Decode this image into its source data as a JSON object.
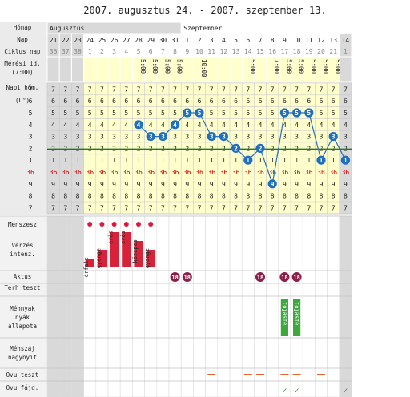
{
  "header": {
    "title": "2007. augusztus 24. - 2007. szeptember 13."
  },
  "labels": {
    "month": "Hónap",
    "day": "Nap",
    "cycle_day": "Ciklus nap",
    "measure_time_1": "Mérési id.",
    "measure_time_2": "(7:00)",
    "temp_1": "Napi hőm.",
    "temp_2": "(C°)",
    "menses": "Menszesz",
    "bleeding_1": "Vérzés",
    "bleeding_2": "intenz.",
    "intercourse": "Aktus",
    "pregnancy_test": "Terh teszt",
    "cervix_1": "Méhnyak",
    "cervix_2": "nyák",
    "cervix_3": "állapota",
    "cervix_os_1": "Méhszáj",
    "cervix_os_2": "nagynyit",
    "ov_test": "Ovu teszt",
    "ov_pain": "Ovu fájd."
  },
  "months": [
    "Augusztus",
    "Szeptember"
  ],
  "days": [
    "21",
    "22",
    "23",
    "24",
    "25",
    "26",
    "27",
    "28",
    "29",
    "30",
    "31",
    "1",
    "2",
    "3",
    "4",
    "5",
    "6",
    "7",
    "8",
    "9",
    "10",
    "11",
    "12",
    "13",
    "14"
  ],
  "cycle_days": [
    "36",
    "37",
    "38",
    "1",
    "2",
    "3",
    "4",
    "5",
    "6",
    "7",
    "8",
    "9",
    "10",
    "11",
    "12",
    "13",
    "14",
    "15",
    "16",
    "17",
    "18",
    "19",
    "20",
    "21",
    "1"
  ],
  "measure_times": [
    "",
    "",
    "",
    "",
    "",
    "",
    "",
    "5:00",
    "5:00",
    "5:00",
    "5:00",
    "",
    "10:00",
    "",
    "",
    "",
    "5:00",
    "",
    "7:00",
    "5:00",
    "5:00",
    "5:00",
    "5:00",
    "5:00",
    ""
  ],
  "temp_scale_labels": [
    "7",
    "6",
    "5",
    "4",
    "3",
    "2",
    "1",
    "36",
    "9",
    "8",
    "7"
  ],
  "bleeding_words": [
    "",
    "",
    "",
    "érfolt",
    "gyenge",
    "erős",
    "erős",
    "közepes",
    "gyenge",
    "",
    "",
    "",
    "",
    "",
    "",
    "",
    "",
    "",
    "",
    "",
    "",
    "",
    "",
    "",
    ""
  ],
  "intercourse_marker": "18",
  "cervix_words": [
    "",
    "",
    "",
    "",
    "",
    "",
    "",
    "",
    "",
    "",
    "",
    "",
    "",
    "",
    "",
    "",
    "",
    "",
    "",
    "tojásfe",
    "tojásfe",
    "",
    "",
    "",
    ""
  ],
  "ov_pain_mark": "✓",
  "chart_data": {
    "type": "line",
    "title": "2007. augusztus 24. - 2007. szeptember 13.",
    "xlabel": "Nap",
    "ylabel": "Napi hőm. (C°)",
    "x": [
      "21",
      "22",
      "23",
      "24",
      "25",
      "26",
      "27",
      "28",
      "29",
      "30",
      "31",
      "1",
      "2",
      "3",
      "4",
      "5",
      "6",
      "7",
      "8",
      "9",
      "10",
      "11",
      "12",
      "13",
      "14"
    ],
    "ylim": [
      35.7,
      36.7
    ],
    "coverline": 36.2,
    "series": [
      {
        "values": [
          null,
          null,
          null,
          null,
          null,
          null,
          null,
          36.4,
          36.3,
          36.3,
          36.4,
          36.5,
          36.5,
          36.3,
          36.3,
          36.2,
          36.1,
          36.2,
          35.9,
          36.5,
          36.5,
          36.5,
          36.1,
          36.3,
          36.1
        ]
      }
    ],
    "menses": [
      false,
      false,
      false,
      true,
      true,
      true,
      true,
      true,
      true,
      false,
      false,
      false,
      false,
      false,
      false,
      false,
      false,
      false,
      false,
      false,
      false,
      false,
      false,
      false,
      false
    ],
    "bleeding_intensity": [
      0,
      0,
      0,
      1,
      2,
      4,
      4,
      3,
      2,
      0,
      0,
      0,
      0,
      0,
      0,
      0,
      0,
      0,
      0,
      0,
      0,
      0,
      0,
      0,
      0
    ],
    "intercourse": [
      false,
      false,
      false,
      false,
      false,
      false,
      false,
      false,
      false,
      false,
      true,
      true,
      false,
      false,
      false,
      false,
      false,
      true,
      false,
      true,
      true,
      false,
      false,
      false,
      false
    ],
    "ovulation_test": [
      false,
      false,
      false,
      false,
      false,
      false,
      false,
      false,
      false,
      false,
      false,
      false,
      false,
      true,
      false,
      false,
      true,
      true,
      false,
      true,
      true,
      false,
      true,
      false,
      false
    ],
    "ovulation_pain": [
      false,
      false,
      false,
      false,
      false,
      false,
      false,
      false,
      false,
      false,
      false,
      false,
      false,
      false,
      false,
      false,
      false,
      false,
      false,
      true,
      true,
      false,
      false,
      false,
      true
    ]
  },
  "colors": {
    "shade": "#d9d9d9",
    "yellow": "#ffffcc",
    "grid": "#c8c8c8",
    "line": "#2a6fb5",
    "dot": "#1f6fc0",
    "coverline": "#1f7a1f",
    "red_label": "#cc0000",
    "menses_dot": "#e0163a",
    "bleeding_bar": "#d8223a",
    "intercourse": "#8a1f4a",
    "cervix": "#3ea83e",
    "ov_test": "#e0642a",
    "ov_pain": "#2a9a2a"
  }
}
